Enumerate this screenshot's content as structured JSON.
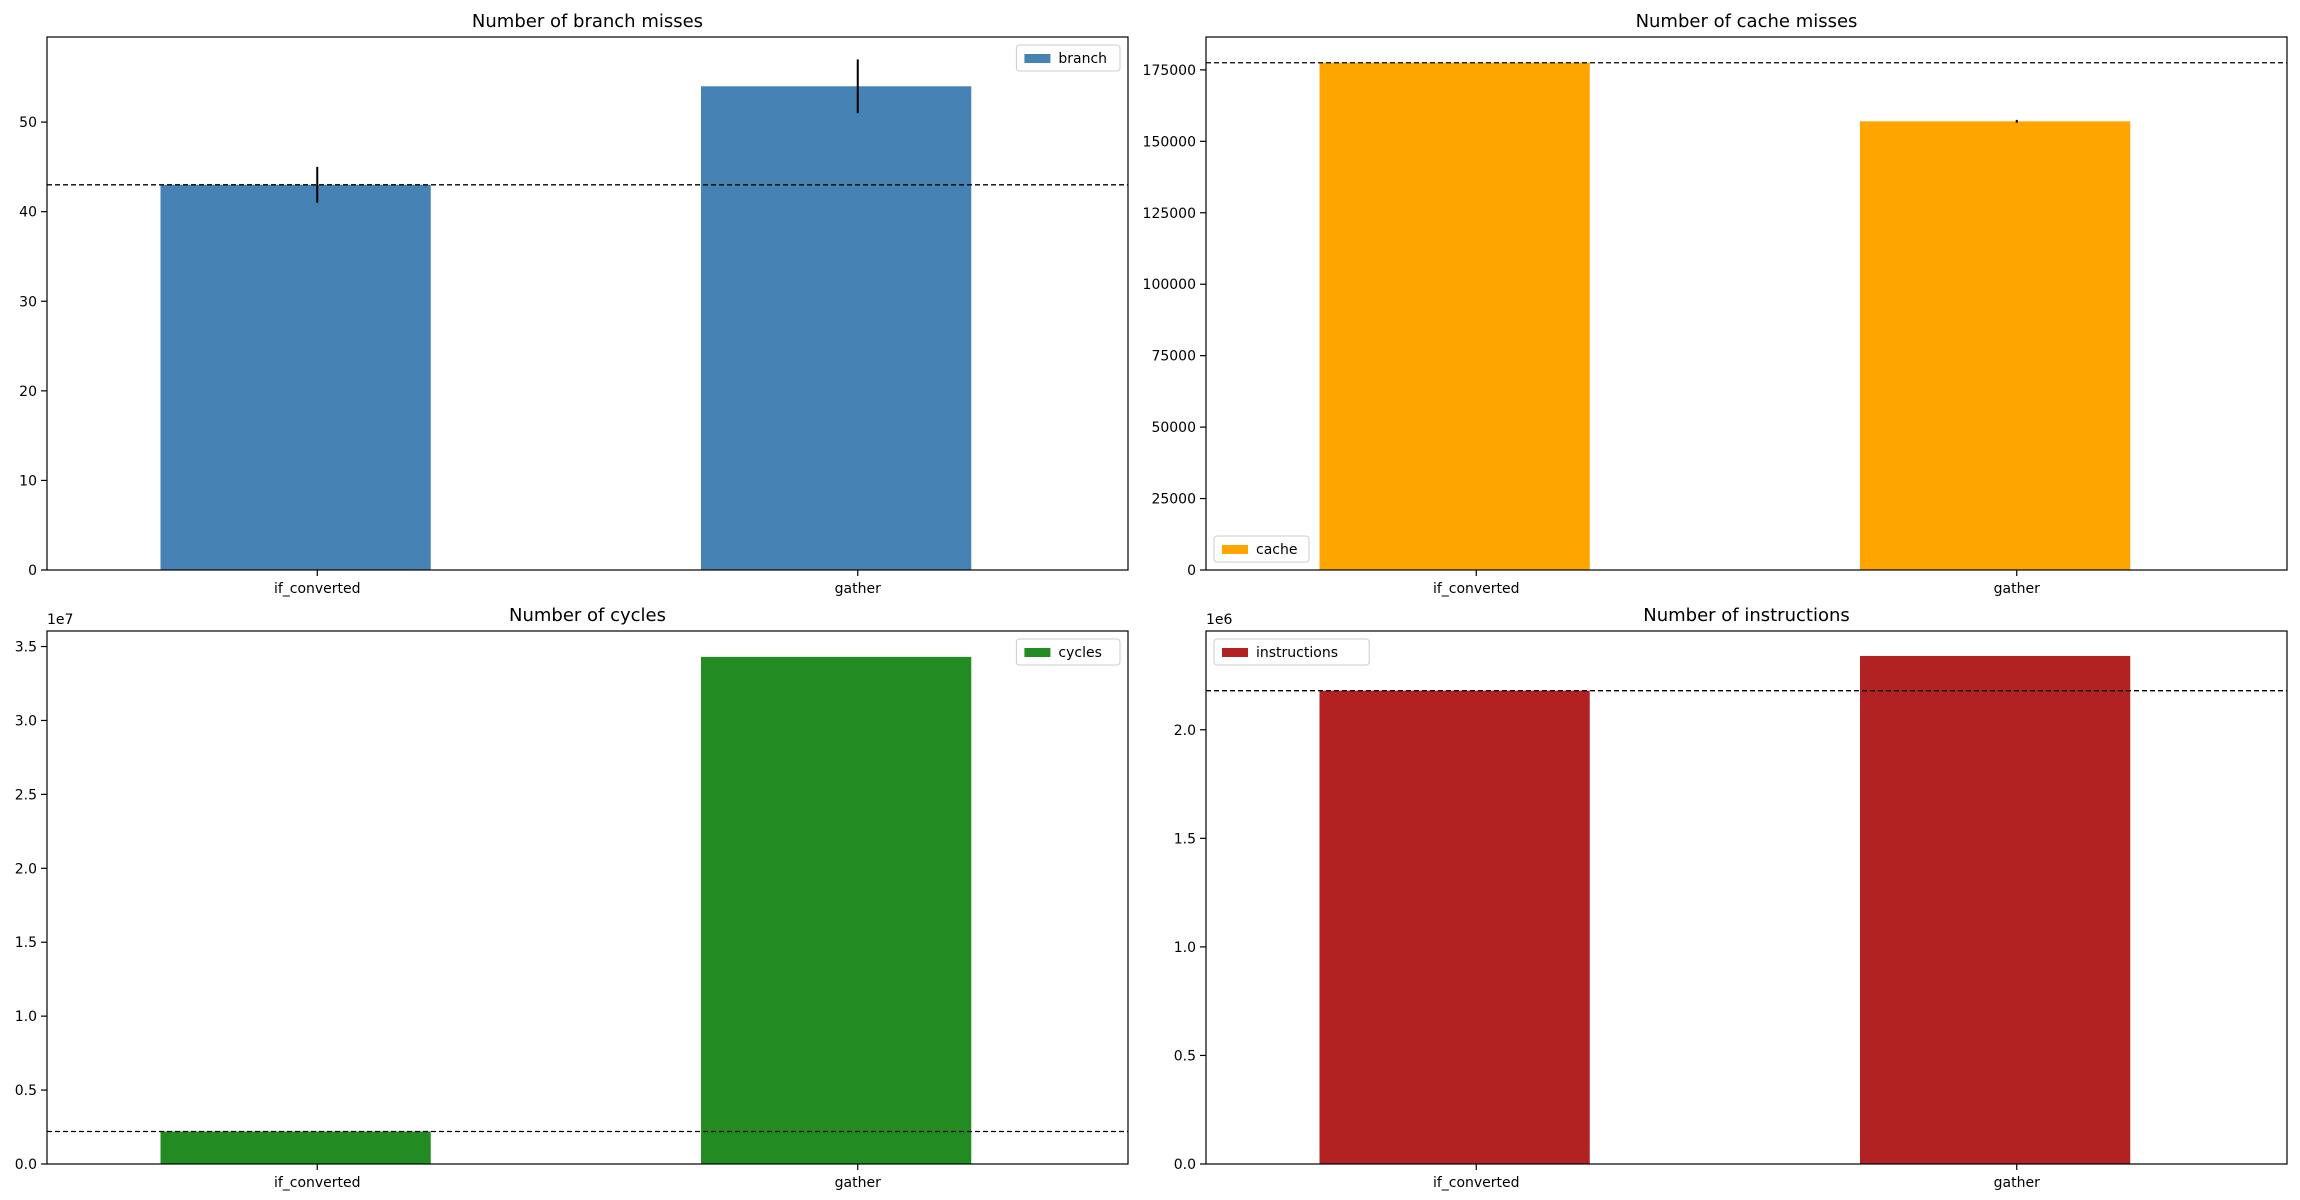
{
  "chart_data": [
    {
      "type": "bar",
      "title": "Number of branch misses",
      "categories": [
        "if_converted",
        "gather"
      ],
      "series": [
        {
          "name": "branch",
          "values": [
            43,
            54
          ],
          "errors": [
            2,
            3
          ]
        }
      ],
      "baseline": 43,
      "color": "#4682b4",
      "ylim": [
        0,
        59.5
      ],
      "yticks": [
        0,
        10,
        20,
        30,
        40,
        50
      ],
      "ytick_labels": [
        "0",
        "10",
        "20",
        "30",
        "40",
        "50"
      ],
      "offset_label": "",
      "legend_position": "top-right",
      "xlabel": "",
      "ylabel": "",
      "grid": false
    },
    {
      "type": "bar",
      "title": "Number of cache misses",
      "categories": [
        "if_converted",
        "gather"
      ],
      "series": [
        {
          "name": "cache",
          "values": [
            177500,
            157000
          ],
          "errors": [
            0,
            500
          ]
        }
      ],
      "baseline": 177500,
      "color": "#ffa500",
      "ylim": [
        0,
        186500
      ],
      "yticks": [
        0,
        25000,
        50000,
        75000,
        100000,
        125000,
        150000,
        175000
      ],
      "ytick_labels": [
        "0",
        "25000",
        "50000",
        "75000",
        "100000",
        "125000",
        "150000",
        "175000"
      ],
      "offset_label": "",
      "legend_position": "bottom-left",
      "xlabel": "",
      "ylabel": "",
      "grid": false
    },
    {
      "type": "bar",
      "title": "Number of cycles",
      "categories": [
        "if_converted",
        "gather"
      ],
      "series": [
        {
          "name": "cycles",
          "values": [
            2.2,
            34.3
          ],
          "errors": [
            0,
            0
          ]
        }
      ],
      "baseline": 2.2,
      "color": "#228b22",
      "ylim": [
        0,
        36.05
      ],
      "yticks": [
        0,
        5,
        10,
        15,
        20,
        25,
        30,
        35
      ],
      "ytick_labels": [
        "0.0",
        "0.5",
        "1.0",
        "1.5",
        "2.0",
        "2.5",
        "3.0",
        "3.5"
      ],
      "offset_label": "1e7",
      "legend_position": "top-right",
      "xlabel": "",
      "ylabel": "",
      "grid": false
    },
    {
      "type": "bar",
      "title": "Number of instructions",
      "categories": [
        "if_converted",
        "gather"
      ],
      "series": [
        {
          "name": "instructions",
          "values": [
            2.18,
            2.34
          ],
          "errors": [
            0,
            0
          ]
        }
      ],
      "baseline": 2.18,
      "color": "#b22222",
      "ylim": [
        0,
        2.455
      ],
      "yticks": [
        0,
        0.5,
        1.0,
        1.5,
        2.0
      ],
      "ytick_labels": [
        "0.0",
        "0.5",
        "1.0",
        "1.5",
        "2.0"
      ],
      "offset_label": "1e6",
      "legend_position": "top-left",
      "xlabel": "",
      "ylabel": "",
      "grid": false
    }
  ]
}
